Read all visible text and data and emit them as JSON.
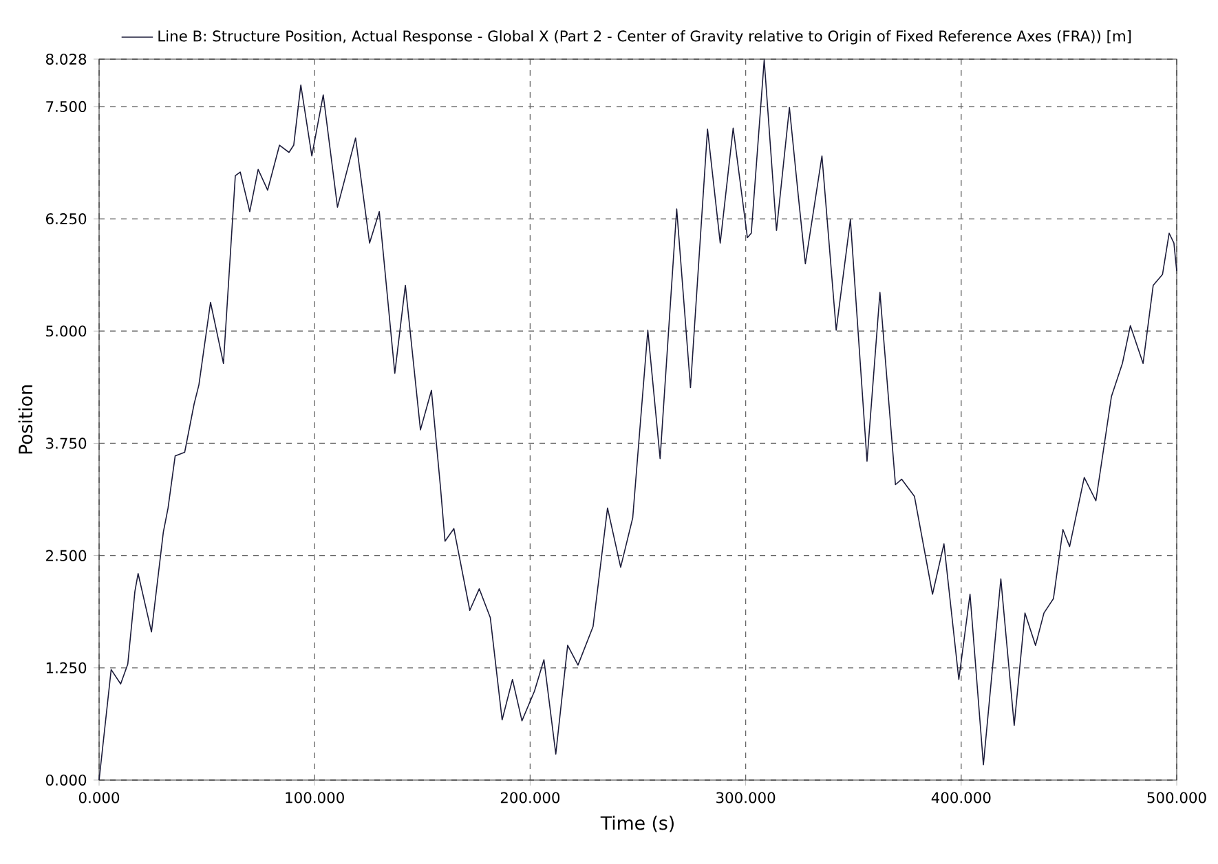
{
  "chart_data": {
    "type": "line",
    "xlabel": "Time (s)",
    "ylabel": "Position",
    "x": [
      0,
      5.6,
      10,
      13.3,
      16.6,
      18.1,
      24.3,
      29.8,
      32,
      35.3,
      39.7,
      44.1,
      46.3,
      51.7,
      57.7,
      63.2,
      65.5,
      69.9,
      73.8,
      78.2,
      83.7,
      88.1,
      90.3,
      93.6,
      98.7,
      104,
      110.6,
      119,
      125.5,
      130,
      137.2,
      142.1,
      149.1,
      154.2,
      158.4,
      160.5,
      164.6,
      172,
      176.4,
      181.5,
      187,
      191.8,
      196.2,
      202,
      206.4,
      211.9,
      217.4,
      222.2,
      229.2,
      235.9,
      242,
      247.6,
      254.6,
      260.3,
      268,
      274.4,
      282.3,
      288.2,
      294.2,
      300.8,
      302.6,
      308.6,
      314.3,
      320.3,
      324.4,
      327.7,
      335.4,
      342,
      348.6,
      356.3,
      362.3,
      369.5,
      372.4,
      378.3,
      386.7,
      392,
      398.9,
      404.1,
      410.3,
      418.4,
      424.6,
      429.6,
      434.5,
      438.4,
      442.8,
      447.2,
      450.3,
      457.1,
      462.5,
      469.7,
      474.8,
      478.5,
      484.4,
      489.1,
      493.4,
      496.5,
      498.7,
      500
    ],
    "series": [
      {
        "name": "Line B: Structure Position, Actual Response - Global X (Part 2 - Center of Gravity relative to Origin of Fixed Reference Axes (FRA)) [m]",
        "color": "#1c1c3a",
        "values": [
          0,
          1.23,
          1.07,
          1.29,
          2.1,
          2.3,
          1.65,
          2.76,
          3.03,
          3.61,
          3.65,
          4.19,
          4.4,
          5.32,
          4.64,
          6.73,
          6.77,
          6.33,
          6.8,
          6.57,
          7.07,
          6.99,
          7.07,
          7.74,
          6.95,
          7.63,
          6.38,
          7.15,
          5.98,
          6.33,
          4.53,
          5.51,
          3.9,
          4.34,
          3.26,
          2.66,
          2.8,
          1.89,
          2.13,
          1.81,
          0.67,
          1.12,
          0.66,
          0.99,
          1.34,
          0.29,
          1.5,
          1.28,
          1.71,
          3.03,
          2.37,
          2.92,
          5.01,
          3.58,
          6.36,
          4.37,
          7.25,
          5.98,
          7.26,
          6.04,
          6.09,
          8.02,
          6.12,
          7.49,
          6.51,
          5.75,
          6.95,
          5.01,
          6.24,
          3.55,
          5.43,
          3.29,
          3.35,
          3.16,
          2.07,
          2.63,
          1.12,
          2.07,
          0.17,
          2.24,
          0.61,
          1.86,
          1.5,
          1.86,
          2.02,
          2.79,
          2.6,
          3.37,
          3.11,
          4.27,
          4.64,
          5.06,
          4.64,
          5.51,
          5.63,
          6.09,
          5.98,
          5.67
        ]
      }
    ],
    "xlim": [
      0,
      500
    ],
    "ylim": [
      0,
      8.028
    ],
    "xticks": [
      {
        "value": 0,
        "label": "0.000"
      },
      {
        "value": 100,
        "label": "100.000"
      },
      {
        "value": 200,
        "label": "200.000"
      },
      {
        "value": 300,
        "label": "300.000"
      },
      {
        "value": 400,
        "label": "400.000"
      },
      {
        "value": 500,
        "label": "500.000"
      }
    ],
    "yticks": [
      {
        "value": 0,
        "label": "0.000"
      },
      {
        "value": 1.25,
        "label": "1.250"
      },
      {
        "value": 2.5,
        "label": "2.500"
      },
      {
        "value": 3.75,
        "label": "3.750"
      },
      {
        "value": 5,
        "label": "5.000"
      },
      {
        "value": 6.25,
        "label": "6.250"
      },
      {
        "value": 7.5,
        "label": "7.500"
      },
      {
        "value": 8.028,
        "label": "8.028"
      }
    ],
    "grid": true,
    "legend": "top",
    "marker": "none",
    "line_style": "solid"
  }
}
